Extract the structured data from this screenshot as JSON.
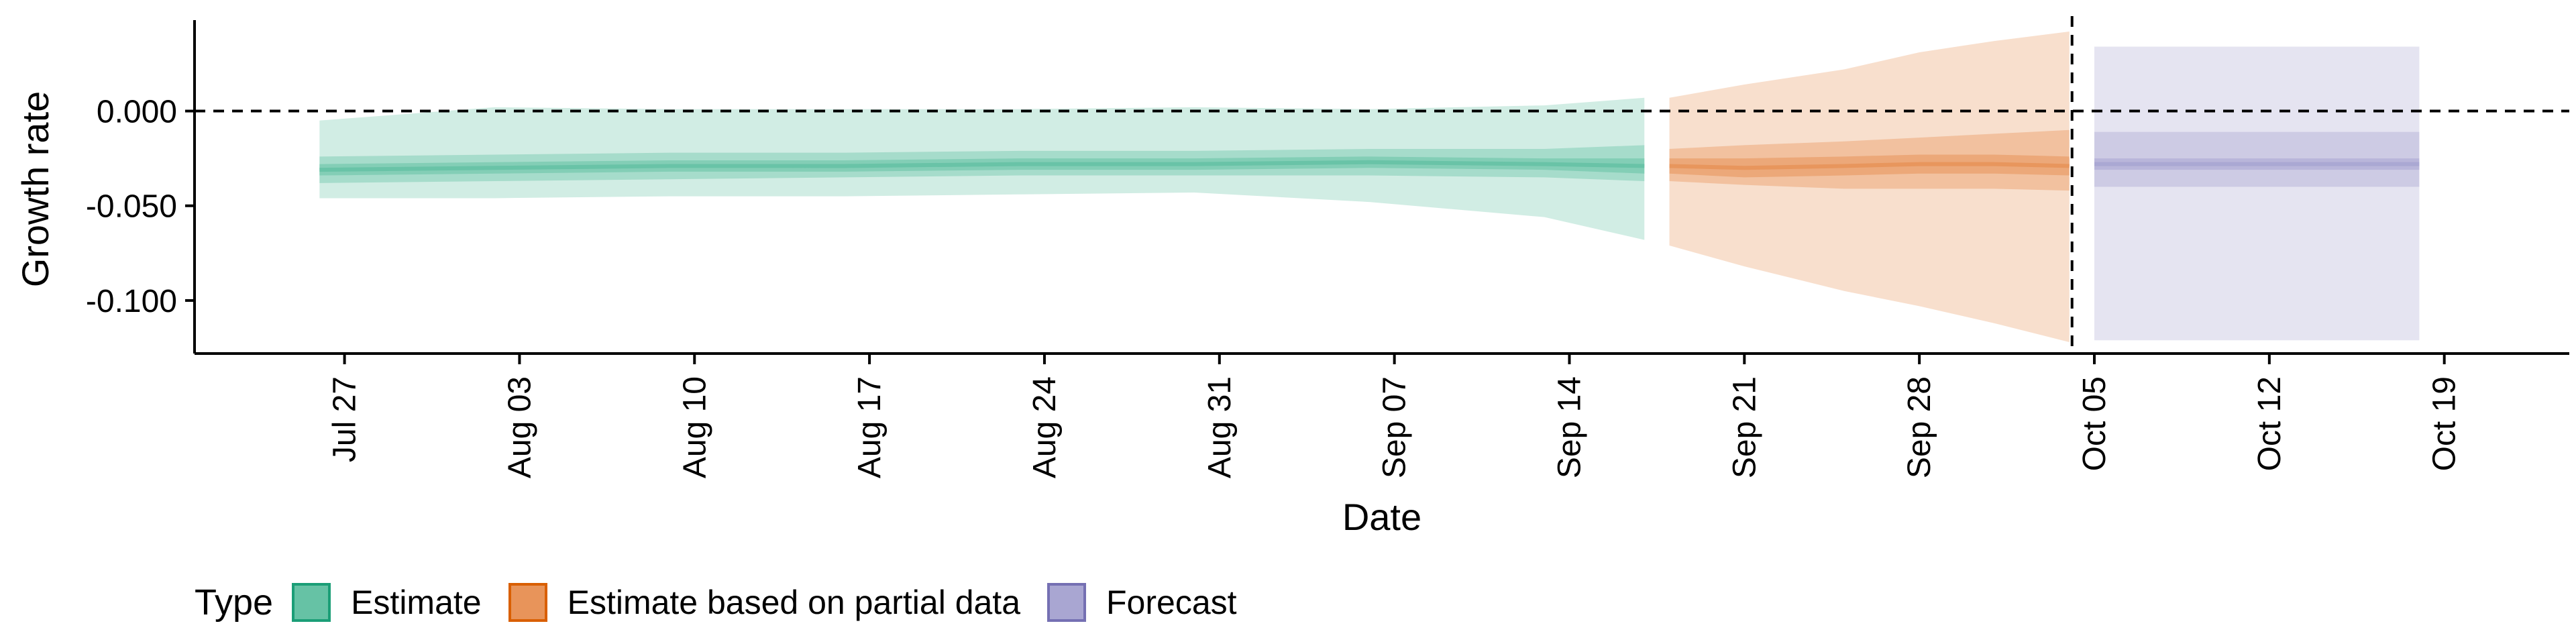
{
  "chart_data": {
    "type": "area",
    "xlabel": "Date",
    "ylabel": "Growth rate",
    "x_ticks": [
      "Jul 27",
      "Aug 03",
      "Aug 10",
      "Aug 17",
      "Aug 24",
      "Aug 31",
      "Sep 07",
      "Sep 14",
      "Sep 21",
      "Sep 28",
      "Oct 05",
      "Oct 12",
      "Oct 19"
    ],
    "x_range": [
      "2020-07-21",
      "2020-10-24"
    ],
    "y_ticks": [
      0.0,
      -0.05,
      -0.1
    ],
    "y_tick_labels": [
      "0.000",
      "-0.050",
      "-0.100"
    ],
    "ylim": [
      -0.128,
      0.048
    ],
    "reference_lines": {
      "horizontal_y": 0.0,
      "vertical_date": "2020-10-04"
    },
    "grid": false,
    "legend": {
      "title": "Type",
      "position": "bottom-left",
      "items": [
        {
          "label": "Estimate",
          "fill": "#66c2a5",
          "border": "#1b9e77"
        },
        {
          "label": "Estimate based on partial data",
          "fill": "#e8945a",
          "border": "#d95f02"
        },
        {
          "label": "Forecast",
          "fill": "#a9a6d2",
          "border": "#7570b3"
        }
      ]
    },
    "series": [
      {
        "name": "Estimate",
        "color": "#66c2a5",
        "x": [
          "2020-07-26",
          "2020-08-02",
          "2020-08-09",
          "2020-08-16",
          "2020-08-23",
          "2020-08-30",
          "2020-09-06",
          "2020-09-13",
          "2020-09-17"
        ],
        "median": [
          -0.031,
          -0.03,
          -0.029,
          -0.029,
          -0.028,
          -0.028,
          -0.027,
          -0.028,
          -0.029
        ],
        "inner_lower": [
          -0.034,
          -0.033,
          -0.032,
          -0.032,
          -0.031,
          -0.031,
          -0.03,
          -0.031,
          -0.033
        ],
        "inner_upper": [
          -0.028,
          -0.027,
          -0.026,
          -0.026,
          -0.025,
          -0.025,
          -0.024,
          -0.025,
          -0.025
        ],
        "mid_lower": [
          -0.038,
          -0.037,
          -0.036,
          -0.035,
          -0.034,
          -0.034,
          -0.034,
          -0.035,
          -0.037
        ],
        "mid_upper": [
          -0.024,
          -0.023,
          -0.022,
          -0.022,
          -0.021,
          -0.021,
          -0.02,
          -0.02,
          -0.018
        ],
        "outer_lower": [
          -0.046,
          -0.046,
          -0.045,
          -0.045,
          -0.044,
          -0.043,
          -0.048,
          -0.056,
          -0.068
        ],
        "outer_upper": [
          -0.005,
          0.002,
          0.001,
          0.001,
          0.001,
          0.002,
          0.001,
          0.003,
          0.007
        ]
      },
      {
        "name": "Estimate based on partial data",
        "color": "#e8945a",
        "x": [
          "2020-09-18",
          "2020-09-21",
          "2020-09-25",
          "2020-09-28",
          "2020-10-01",
          "2020-10-04"
        ],
        "median": [
          -0.029,
          -0.03,
          -0.029,
          -0.028,
          -0.028,
          -0.029
        ],
        "inner_lower": [
          -0.033,
          -0.035,
          -0.034,
          -0.033,
          -0.033,
          -0.034
        ],
        "inner_upper": [
          -0.025,
          -0.025,
          -0.024,
          -0.023,
          -0.023,
          -0.024
        ],
        "mid_lower": [
          -0.037,
          -0.039,
          -0.041,
          -0.041,
          -0.041,
          -0.042
        ],
        "mid_upper": [
          -0.02,
          -0.018,
          -0.016,
          -0.014,
          -0.012,
          -0.01
        ],
        "outer_lower": [
          -0.071,
          -0.082,
          -0.095,
          -0.103,
          -0.112,
          -0.122
        ],
        "outer_upper": [
          0.007,
          0.014,
          0.022,
          0.031,
          0.037,
          0.042
        ]
      },
      {
        "name": "Forecast",
        "color": "#a9a6d2",
        "x": [
          "2020-10-05",
          "2020-10-18"
        ],
        "median": [
          -0.028,
          -0.028
        ],
        "inner_lower": [
          -0.031,
          -0.031
        ],
        "inner_upper": [
          -0.025,
          -0.025
        ],
        "mid_lower": [
          -0.04,
          -0.04
        ],
        "mid_upper": [
          -0.011,
          -0.011
        ],
        "outer_lower": [
          -0.121,
          -0.121
        ],
        "outer_upper": [
          0.034,
          0.034
        ]
      }
    ]
  }
}
